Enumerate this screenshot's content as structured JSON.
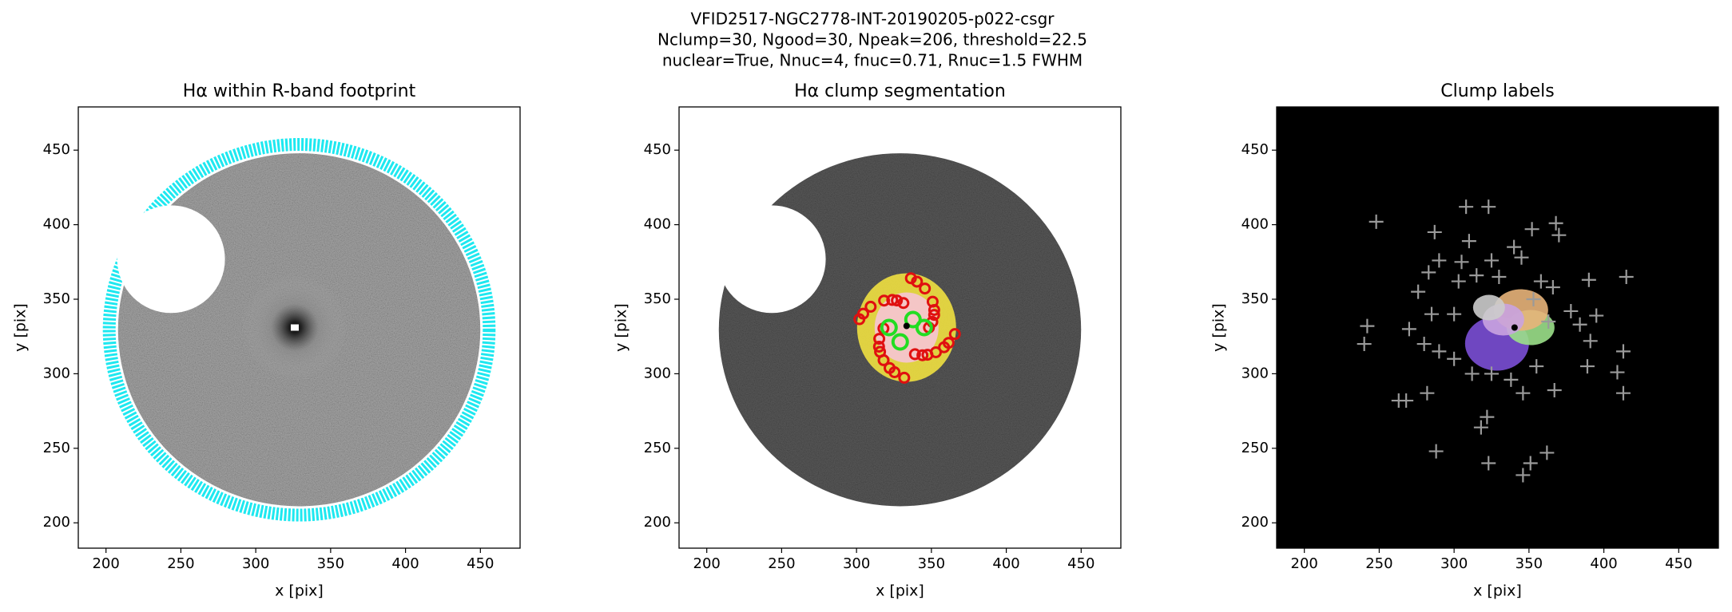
{
  "title": [
    "VFID2517-NGC2778-INT-20190205-p022-csgr",
    "Nclump=30, Ngood=30, Npeak=206, threshold=22.5",
    "nuclear=True, Nnuc=4, fnuc=0.71, Rnuc=1.5 FWHM"
  ],
  "chart_data": [
    {
      "type": "image",
      "title": "Hα within R-band footprint",
      "xlabel": "x [pix]",
      "ylabel": "y [pix]",
      "xlim": [
        181.5,
        476.5
      ],
      "ylim": [
        183,
        479
      ],
      "xticks": [
        200,
        250,
        300,
        350,
        400,
        450
      ],
      "yticks": [
        200,
        250,
        300,
        350,
        400,
        450
      ]
    },
    {
      "type": "image",
      "title": "Hα clump segmentation",
      "xlabel": "x [pix]",
      "ylabel": "y [pix]",
      "xlim": [
        181.5,
        476.5
      ],
      "ylim": [
        183,
        479
      ],
      "xticks": [
        200,
        250,
        300,
        350,
        400,
        450
      ],
      "yticks": [
        200,
        250,
        300,
        350,
        400,
        450
      ]
    },
    {
      "type": "scatter",
      "title": "Clump labels",
      "xlabel": "x [pix]",
      "ylabel": "y [pix]",
      "xlim": [
        181.5,
        476.5
      ],
      "ylim": [
        183,
        479
      ],
      "xticks": [
        200,
        250,
        300,
        350,
        400,
        450
      ],
      "yticks": [
        200,
        250,
        300,
        350,
        400,
        450
      ],
      "color": "#9a9a9a",
      "x": [
        248,
        308,
        323,
        287,
        368,
        370,
        352,
        310,
        340,
        345,
        325,
        305,
        290,
        283,
        276,
        303,
        315,
        330,
        358,
        366,
        390,
        415,
        353,
        363,
        378,
        395,
        384,
        242,
        240,
        270,
        280,
        290,
        300,
        312,
        325,
        338,
        355,
        367,
        346,
        391,
        389,
        413,
        409,
        413,
        263,
        268,
        282,
        288,
        318,
        322,
        323,
        346,
        351,
        362,
        300,
        285
      ],
      "y": [
        402,
        412,
        412,
        395,
        401,
        393,
        397,
        389,
        385,
        378,
        376,
        375,
        376,
        368,
        355,
        362,
        366,
        365,
        362,
        358,
        363,
        365,
        350,
        335,
        342,
        339,
        333,
        332,
        320,
        330,
        320,
        315,
        310,
        300,
        300,
        296,
        305,
        289,
        287,
        322,
        305,
        315,
        301,
        287,
        282,
        282,
        287,
        248,
        264,
        271,
        240,
        232,
        240,
        247,
        340,
        340
      ]
    }
  ]
}
